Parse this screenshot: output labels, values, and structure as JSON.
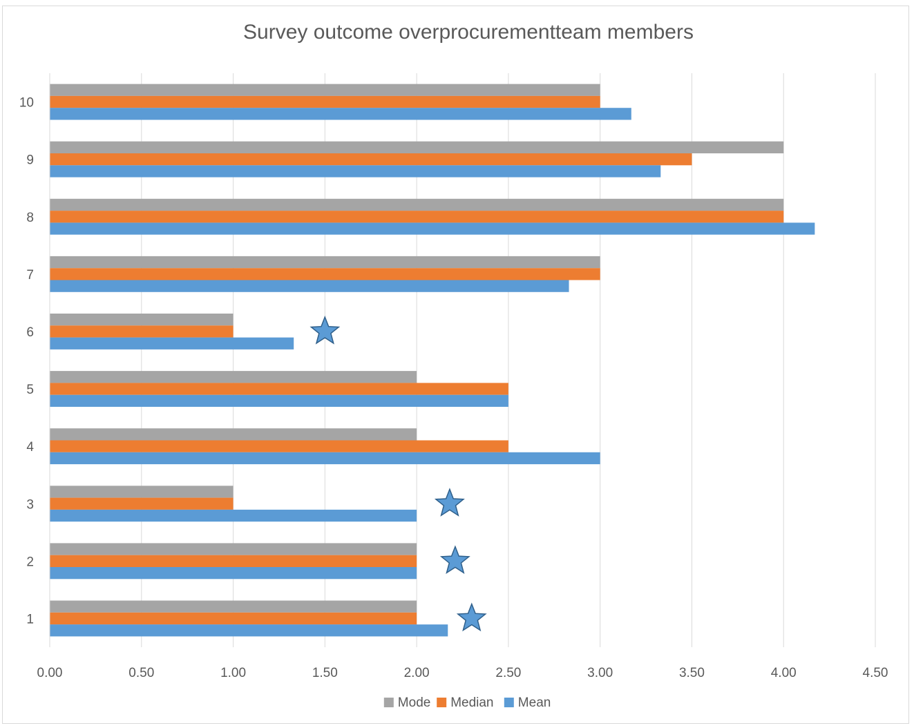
{
  "chart_data": {
    "type": "bar",
    "orientation": "horizontal",
    "title": "Survey outcome overprocurementteam members",
    "xlabel": "",
    "ylabel": "",
    "categories": [
      "1",
      "2",
      "3",
      "4",
      "5",
      "6",
      "7",
      "8",
      "9",
      "10"
    ],
    "series": [
      {
        "name": "Mode",
        "color": "#a5a5a5",
        "values": [
          2.0,
          2.0,
          1.0,
          2.0,
          2.0,
          1.0,
          3.0,
          4.0,
          4.0,
          3.0
        ]
      },
      {
        "name": "Median",
        "color": "#ed7d31",
        "values": [
          2.0,
          2.0,
          1.0,
          2.5,
          2.5,
          1.0,
          3.0,
          4.0,
          3.5,
          3.0
        ]
      },
      {
        "name": "Mean",
        "color": "#5b9bd5",
        "values": [
          2.17,
          2.0,
          2.0,
          3.0,
          2.5,
          1.33,
          2.83,
          4.17,
          3.33,
          3.17
        ]
      }
    ],
    "xlim": [
      0,
      4.5
    ],
    "xticks": [
      "0.00",
      "0.50",
      "1.00",
      "1.50",
      "2.00",
      "2.50",
      "3.00",
      "3.50",
      "4.00",
      "4.50"
    ],
    "grid": "vertical",
    "legend_position": "bottom",
    "annotations": [
      {
        "shape": "star",
        "color": "#5b9bd5",
        "category": "1",
        "x": 2.3
      },
      {
        "shape": "star",
        "color": "#5b9bd5",
        "category": "2",
        "x": 2.21
      },
      {
        "shape": "star",
        "color": "#5b9bd5",
        "category": "3",
        "x": 2.18
      },
      {
        "shape": "star",
        "color": "#5b9bd5",
        "category": "6",
        "x": 1.5
      }
    ]
  }
}
